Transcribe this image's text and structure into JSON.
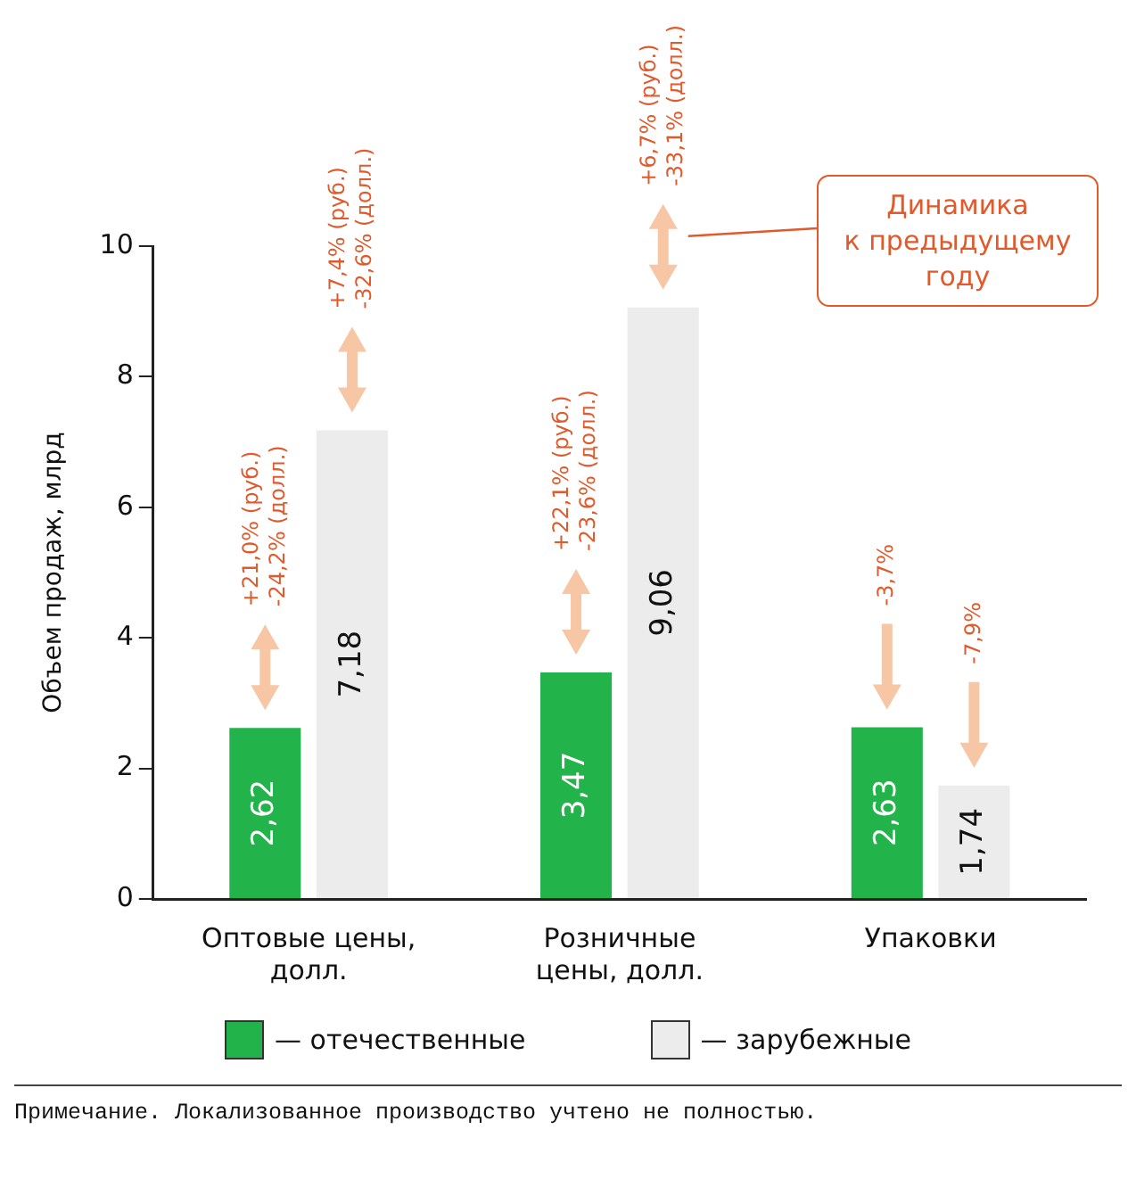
{
  "chart_data": {
    "type": "bar",
    "ylabel": "Объем продаж, млрд",
    "categories": [
      "Оптовые цены, долл.",
      "Розничные цены, долл.",
      "Упаковки"
    ],
    "series": [
      {
        "name": "— отечественные",
        "color": "#22b34a",
        "values": [
          2.62,
          3.47,
          2.63
        ],
        "value_labels": [
          "2,62",
          "3,47",
          "2,63"
        ]
      },
      {
        "name": "— зарубежные",
        "color": "#ececec",
        "values": [
          7.18,
          9.06,
          1.74
        ],
        "value_labels": [
          "7,18",
          "9,06",
          "1,74"
        ]
      }
    ],
    "ylim": [
      0,
      10
    ],
    "yticks": [
      0,
      2,
      4,
      6,
      8,
      10
    ],
    "grid": false,
    "legend": "bottom",
    "annotations": [
      "+21,0% (руб.)\n-24,2% (долл.)",
      "+7,4% (руб.)\n-32,6% (долл.)",
      "+22,1% (руб.)\n-23,6% (долл.)",
      "+6,7% (руб.)\n-33,1% (долл.)",
      "-3,7%",
      "-7,9%",
      "Динамика\nк предыдущему\nгоду",
      "Примечание. Локализованное производство учтено не полностью."
    ]
  }
}
